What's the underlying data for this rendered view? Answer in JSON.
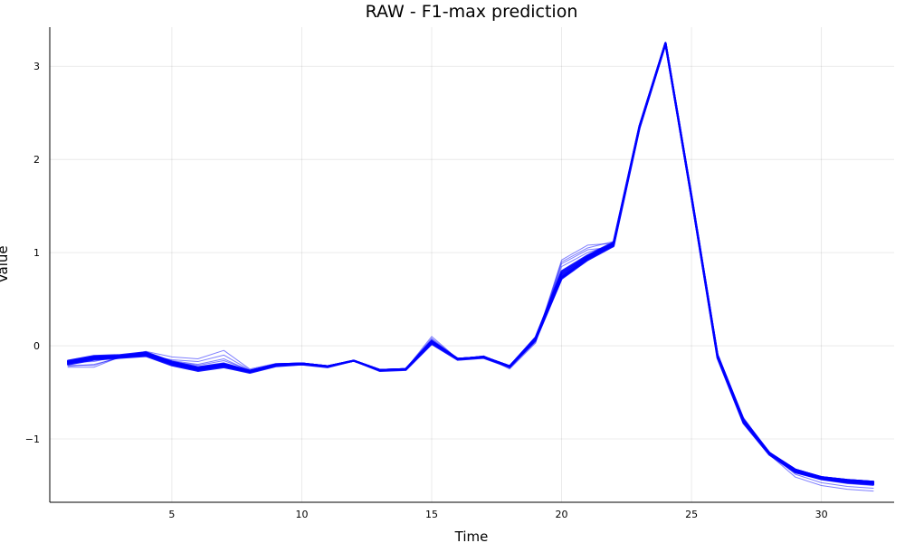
{
  "chart_data": {
    "type": "line",
    "title": "RAW - F1-max prediction",
    "xlabel": "Time",
    "ylabel": "Value",
    "xlim": [
      0.3,
      32.8
    ],
    "ylim": [
      -1.68,
      3.42
    ],
    "x_ticks": [
      5,
      10,
      15,
      20,
      25,
      30
    ],
    "y_ticks": [
      -1,
      0,
      1,
      2,
      3
    ],
    "grid": true,
    "legend": "none",
    "line_color": "#0000ff",
    "x": [
      1,
      2,
      3,
      4,
      5,
      6,
      7,
      8,
      9,
      10,
      11,
      12,
      13,
      14,
      15,
      16,
      17,
      18,
      19,
      20,
      21,
      22,
      23,
      24,
      25,
      26,
      27,
      28,
      29,
      30,
      31,
      32
    ],
    "series": [
      {
        "values": [
          -0.17,
          -0.12,
          -0.11,
          -0.08,
          -0.18,
          -0.24,
          -0.2,
          -0.27,
          -0.2,
          -0.19,
          -0.22,
          -0.16,
          -0.26,
          -0.25,
          0.05,
          -0.14,
          -0.12,
          -0.22,
          0.08,
          0.76,
          0.95,
          1.1,
          2.35,
          3.25,
          1.6,
          -0.1,
          -0.8,
          -1.15,
          -1.33,
          -1.41,
          -1.44,
          -1.46
        ]
      },
      {
        "values": [
          -0.18,
          -0.13,
          -0.12,
          -0.09,
          -0.19,
          -0.25,
          -0.21,
          -0.28,
          -0.21,
          -0.19,
          -0.22,
          -0.16,
          -0.26,
          -0.25,
          0.04,
          -0.14,
          -0.12,
          -0.22,
          0.07,
          0.74,
          0.94,
          1.09,
          2.35,
          3.25,
          1.6,
          -0.11,
          -0.81,
          -1.16,
          -1.34,
          -1.42,
          -1.45,
          -1.47
        ]
      },
      {
        "values": [
          -0.19,
          -0.14,
          -0.12,
          -0.1,
          -0.2,
          -0.26,
          -0.22,
          -0.28,
          -0.21,
          -0.2,
          -0.22,
          -0.16,
          -0.26,
          -0.25,
          0.03,
          -0.14,
          -0.12,
          -0.22,
          0.07,
          0.73,
          0.93,
          1.08,
          2.34,
          3.24,
          1.59,
          -0.12,
          -0.82,
          -1.16,
          -1.35,
          -1.43,
          -1.46,
          -1.48
        ]
      },
      {
        "values": [
          -0.16,
          -0.11,
          -0.1,
          -0.07,
          -0.17,
          -0.23,
          -0.19,
          -0.27,
          -0.2,
          -0.19,
          -0.22,
          -0.16,
          -0.26,
          -0.25,
          0.05,
          -0.14,
          -0.12,
          -0.22,
          0.09,
          0.78,
          0.96,
          1.1,
          2.36,
          3.25,
          1.6,
          -0.1,
          -0.8,
          -1.15,
          -1.33,
          -1.41,
          -1.44,
          -1.46
        ]
      },
      {
        "values": [
          -0.2,
          -0.15,
          -0.13,
          -0.11,
          -0.21,
          -0.27,
          -0.23,
          -0.29,
          -0.22,
          -0.2,
          -0.23,
          -0.16,
          -0.27,
          -0.26,
          0.02,
          -0.15,
          -0.13,
          -0.23,
          0.06,
          0.72,
          0.92,
          1.07,
          2.34,
          3.24,
          1.59,
          -0.13,
          -0.83,
          -1.17,
          -1.36,
          -1.43,
          -1.47,
          -1.49
        ]
      },
      {
        "values": [
          -0.17,
          -0.12,
          -0.11,
          -0.08,
          -0.18,
          -0.24,
          -0.2,
          -0.27,
          -0.2,
          -0.19,
          -0.22,
          -0.16,
          -0.26,
          -0.25,
          0.05,
          -0.14,
          -0.12,
          -0.22,
          0.08,
          0.8,
          0.97,
          1.11,
          2.36,
          3.25,
          1.61,
          -0.1,
          -0.79,
          -1.15,
          -1.33,
          -1.41,
          -1.44,
          -1.46
        ]
      },
      {
        "values": [
          -0.23,
          -0.23,
          -0.12,
          -0.06,
          -0.12,
          -0.14,
          -0.05,
          -0.25,
          -0.19,
          -0.19,
          -0.22,
          -0.16,
          -0.26,
          -0.25,
          0.1,
          -0.14,
          -0.11,
          -0.24,
          0.05,
          0.92,
          1.08,
          1.1,
          2.36,
          3.25,
          1.6,
          -0.08,
          -0.78,
          -1.14,
          -1.35,
          -1.43,
          -1.46,
          -1.48
        ]
      },
      {
        "values": [
          -0.22,
          -0.2,
          -0.13,
          -0.1,
          -0.15,
          -0.17,
          -0.1,
          -0.26,
          -0.2,
          -0.19,
          -0.22,
          -0.16,
          -0.26,
          -0.25,
          0.08,
          -0.14,
          -0.11,
          -0.23,
          0.04,
          0.9,
          1.05,
          1.12,
          2.37,
          3.26,
          1.61,
          -0.09,
          -0.77,
          -1.15,
          -1.38,
          -1.47,
          -1.51,
          -1.53
        ]
      },
      {
        "values": [
          -0.21,
          -0.21,
          -0.12,
          -0.09,
          -0.16,
          -0.2,
          -0.14,
          -0.27,
          -0.2,
          -0.19,
          -0.22,
          -0.16,
          -0.26,
          -0.25,
          0.07,
          -0.14,
          -0.11,
          -0.25,
          0.03,
          0.88,
          1.03,
          1.06,
          2.35,
          3.25,
          1.6,
          -0.11,
          -0.82,
          -1.17,
          -1.41,
          -1.5,
          -1.54,
          -1.56
        ]
      },
      {
        "values": [
          -0.18,
          -0.17,
          -0.11,
          -0.07,
          -0.17,
          -0.21,
          -0.16,
          -0.26,
          -0.2,
          -0.19,
          -0.22,
          -0.16,
          -0.26,
          -0.25,
          0.06,
          -0.14,
          -0.11,
          -0.22,
          0.06,
          0.85,
          1.0,
          1.09,
          2.35,
          3.25,
          1.6,
          -0.1,
          -0.8,
          -1.16,
          -1.36,
          -1.44,
          -1.48,
          -1.5
        ]
      }
    ]
  }
}
